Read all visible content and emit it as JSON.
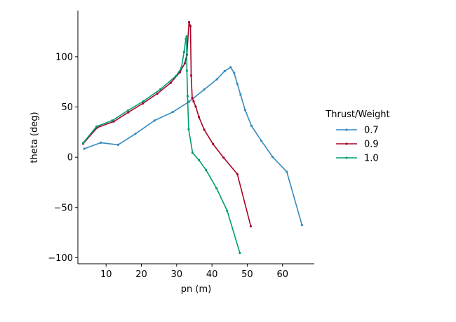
{
  "chart_data": {
    "type": "line",
    "xlabel": "pn (m)",
    "ylabel": "theta (deg)",
    "xlim": [
      2,
      69
    ],
    "ylim": [
      -106,
      146
    ],
    "xticks": [
      10,
      20,
      30,
      40,
      50,
      60
    ],
    "yticks": [
      -100,
      -50,
      0,
      50,
      100
    ],
    "grid": false,
    "legend": {
      "title": "Thrust/Weight",
      "placement": "right"
    },
    "series": [
      {
        "name": "0.7",
        "color": "#348abd",
        "x": [
          3.8,
          8.5,
          13.4,
          18.3,
          23.7,
          28.9,
          33.5,
          37.8,
          41.4,
          43.6,
          45.3,
          46.3,
          47.2,
          48.1,
          49.4,
          51.2,
          54.0,
          57.2,
          61.2,
          65.5
        ],
        "y": [
          8.5,
          14.5,
          12.4,
          23.3,
          36.5,
          45.0,
          55.2,
          67.4,
          77.6,
          85.7,
          89.6,
          83.8,
          73.0,
          62.2,
          47.0,
          31.2,
          16.3,
          0.3,
          -14.5,
          -67.4
        ]
      },
      {
        "name": "0.9",
        "color": "#a60628",
        "x": [
          3.5,
          7.5,
          12.2,
          16.3,
          20.4,
          24.5,
          28.3,
          30.9,
          32.3,
          32.9,
          33.5,
          33.9,
          34.1,
          34.4,
          34.8,
          35.4,
          36.3,
          37.8,
          40.3,
          43.3,
          47.2,
          51.0
        ],
        "y": [
          13.5,
          29.6,
          35.6,
          44.7,
          53.5,
          63.3,
          74.0,
          84.6,
          93.5,
          102.0,
          134.5,
          130.5,
          81.3,
          59.1,
          55.5,
          50.4,
          40.1,
          27.5,
          13.2,
          -0.4,
          -16.7,
          -68.7
        ]
      },
      {
        "name": "1.0",
        "color": "#009e73",
        "x": [
          3.5,
          7.3,
          11.7,
          16.2,
          20.6,
          25.4,
          29.8,
          31.3,
          32.1,
          32.6,
          32.8,
          32.9,
          33.1,
          33.4,
          34.5,
          36.3,
          38.3,
          41.3,
          44.3,
          47.9
        ],
        "y": [
          14.2,
          30.6,
          36.5,
          46.5,
          55.8,
          67.7,
          80.8,
          88.6,
          104.8,
          117.7,
          120.2,
          86.2,
          60.8,
          27.9,
          4.4,
          -2.8,
          -12.6,
          -30.9,
          -53.2,
          -95.2
        ]
      }
    ]
  }
}
